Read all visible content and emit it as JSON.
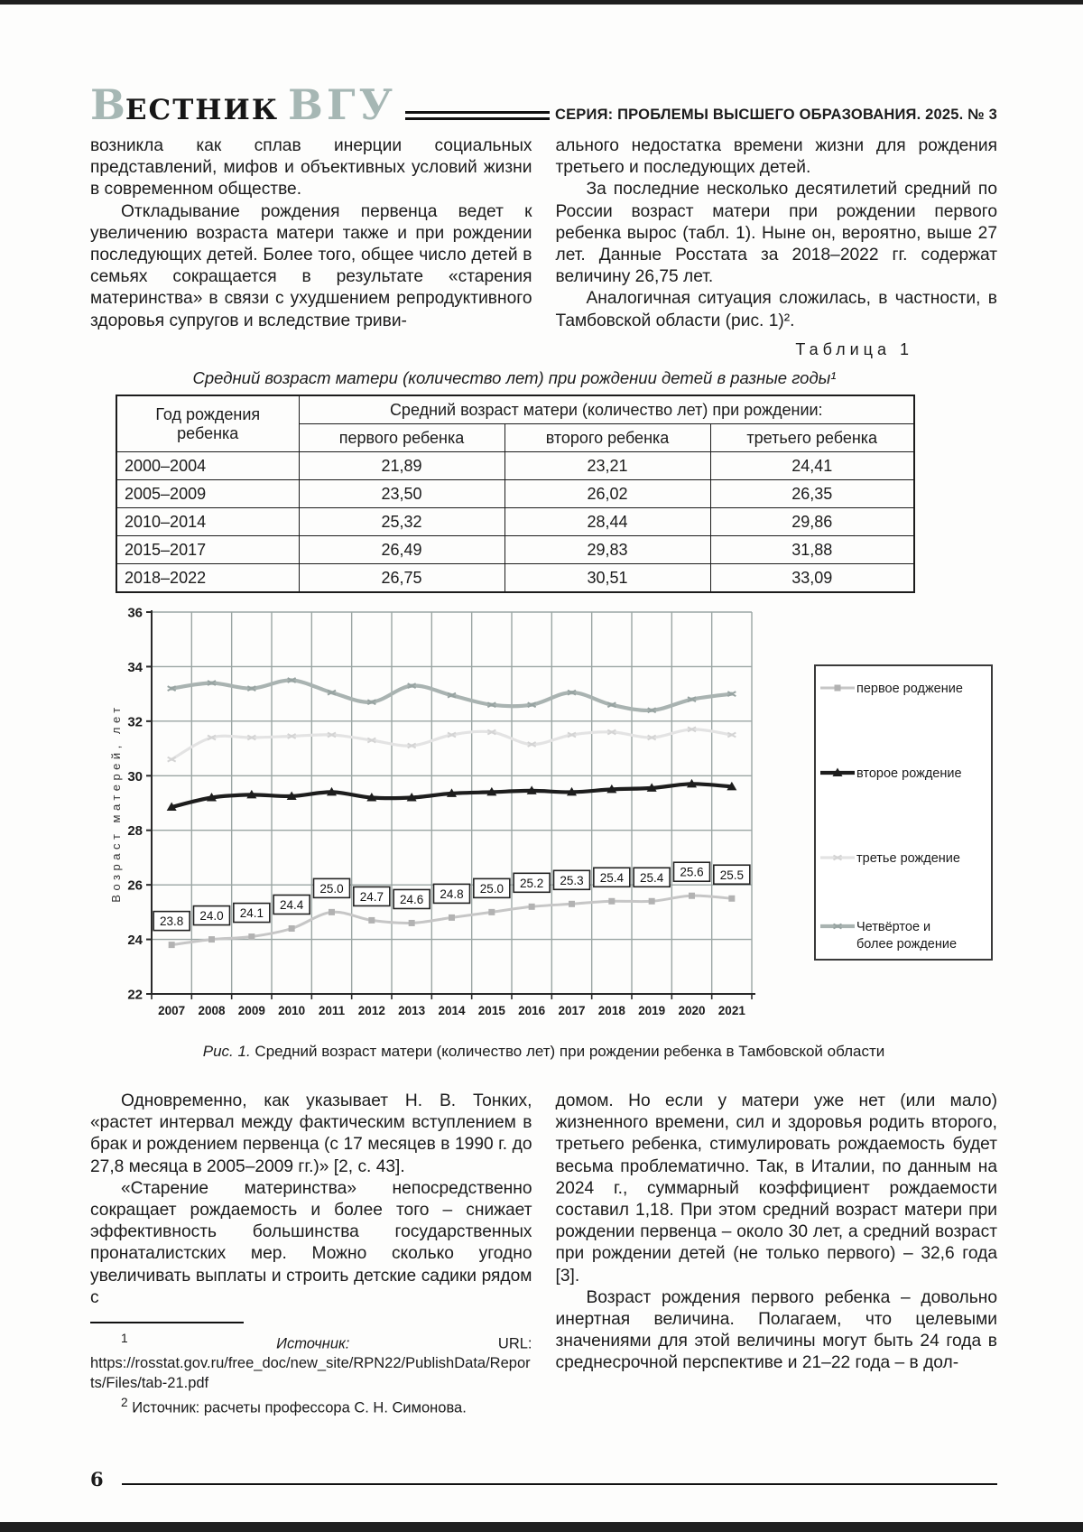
{
  "page": {
    "number": "6"
  },
  "header": {
    "logo": {
      "initial": "В",
      "rest": "ЕСТНИК",
      "suffix": "ВГУ"
    },
    "series": "СЕРИЯ: ПРОБЛЕМЫ ВЫСШЕГО ОБРАЗОВАНИЯ. 2025. № 3"
  },
  "intro": {
    "col1": [
      {
        "indent": false,
        "text": "возникла как сплав инерции социальных представлений, мифов и объективных условий жизни в современном обществе."
      },
      {
        "indent": true,
        "text": "Откладывание рождения первенца ведет к увеличению возраста матери также и при рождении последующих детей. Более того, общее число детей в семьях сокращается в результате «старения материнства» в связи с ухудшением репродуктивного здоровья супругов и вследствие триви-"
      }
    ],
    "col2": [
      {
        "indent": false,
        "text": "ального недостатка времени жизни для рождения третьего и последующих детей."
      },
      {
        "indent": true,
        "text": "За последние несколько десятилетий средний по России возраст матери при рождении первого ребенка вырос (табл. 1). Ныне он, вероятно, выше 27 лет. Данные Росстата за 2018–2022 гг. содержат величину 26,75 лет."
      },
      {
        "indent": true,
        "text": "Аналогичная ситуация сложилась, в частности, в Тамбовской области (рис. 1)²."
      }
    ]
  },
  "table1": {
    "label": "Таблица 1",
    "caption": "Средний возраст матери (количество лет) при рождении детей в разные годы¹",
    "corner_header": "Год рождения ребенка",
    "group_header": "Средний возраст матери (количество лет) при рождении:",
    "sub_headers": [
      "первого ребенка",
      "второго ребенка",
      "третьего ребенка"
    ],
    "rows": [
      [
        "2000–2004",
        "21,89",
        "23,21",
        "24,41"
      ],
      [
        "2005–2009",
        "23,50",
        "26,02",
        "26,35"
      ],
      [
        "2010–2014",
        "25,32",
        "28,44",
        "29,86"
      ],
      [
        "2015–2017",
        "26,49",
        "29,83",
        "31,88"
      ],
      [
        "2018–2022",
        "26,75",
        "30,51",
        "33,09"
      ]
    ]
  },
  "chart_data": {
    "type": "line",
    "x": [
      2007,
      2008,
      2009,
      2010,
      2011,
      2012,
      2013,
      2014,
      2015,
      2016,
      2017,
      2018,
      2019,
      2020,
      2021
    ],
    "ylabel": "Возраст матерей, лет",
    "ylim": [
      22,
      36
    ],
    "ytick_step": 2,
    "grid": true,
    "legend_position": "right",
    "grid_color": "#9aa5a3",
    "series": [
      {
        "name": "первое роджение",
        "legend_lines": [
          "первое роджение"
        ],
        "color": "#c6c6c6",
        "marker_color": "#b2b2b2",
        "marker": "square",
        "width": 3,
        "data_labels": true,
        "values": [
          23.8,
          24.0,
          24.1,
          24.4,
          25.0,
          24.7,
          24.6,
          24.8,
          25.0,
          25.2,
          25.3,
          25.4,
          25.4,
          25.6,
          25.5
        ]
      },
      {
        "name": "второе рождение",
        "legend_lines": [
          "второе рождение"
        ],
        "color": "#1d1d1d",
        "marker_color": "#1d1d1d",
        "marker": "triangle",
        "width": 4.2,
        "data_labels": false,
        "values": [
          28.85,
          29.2,
          29.3,
          29.25,
          29.4,
          29.2,
          29.2,
          29.35,
          29.4,
          29.45,
          29.4,
          29.5,
          29.55,
          29.7,
          29.6
        ]
      },
      {
        "name": "третье рождение",
        "legend_lines": [
          "третье рождение"
        ],
        "color": "#e3e3e3",
        "marker_color": "#d4d4d4",
        "marker": "cross",
        "width": 3.2,
        "data_labels": false,
        "values": [
          30.6,
          31.4,
          31.4,
          31.45,
          31.5,
          31.3,
          31.1,
          31.5,
          31.6,
          31.15,
          31.5,
          31.6,
          31.4,
          31.7,
          31.5
        ]
      },
      {
        "name": "Четвёртое и более рождение",
        "legend_lines": [
          "Четвёртое и",
          "более рождение"
        ],
        "color": "#a9b3b1",
        "marker_color": "#97a3a1",
        "marker": "cross",
        "width": 4.2,
        "data_labels": false,
        "values": [
          33.2,
          33.4,
          33.2,
          33.5,
          33.05,
          32.7,
          33.3,
          32.95,
          32.6,
          32.6,
          33.05,
          32.6,
          32.4,
          32.8,
          33.0
        ]
      }
    ]
  },
  "figure1": {
    "label": "Рис. 1.",
    "caption": " Средний возраст матери (количество лет) при рождении ребенка в Тамбовской области"
  },
  "body2": {
    "col1": [
      {
        "indent": true,
        "text": "Одновременно, как указывает Н. В. Тонких, «растет интервал между фактическим вступлением в брак и рождением первенца (с 17 месяцев в 1990 г. до 27,8 месяца в 2005–2009 гг.)» [2, с. 43]."
      },
      {
        "indent": true,
        "text": "«Старение материнства» непосредственно сокращает рождаемость и более того – снижает эффективность большинства государственных пронаталистских мер. Можно сколько угодно увеличивать выплаты и строить детские садики рядом с"
      }
    ],
    "col2": [
      {
        "indent": false,
        "text": "домом. Но если у матери уже нет (или мало) жизненного времени, сил и здоровья родить второго, третьего ребенка, стимулировать рождаемость будет весьма проблематично. Так, в Италии, по данным на 2024 г., суммарный коэффициент рождаемости составил 1,18. При этом средний возраст матери при рождении первенца – около 30 лет, а средний возраст при рождении детей (не только первого) – 32,6 года [3]."
      },
      {
        "indent": true,
        "text": "Возраст рождения первого ребенка – довольно инертная величина. Полагаем, что целевыми значениями для этой величины могут быть 24 года в среднесрочной перспективе и 21–22 года – в дол-"
      }
    ]
  },
  "footnotes": [
    {
      "mark": "1",
      "label": "Источник:",
      "label_italic": true,
      "text": "URL: https://rosstat.gov.ru/free_doc/new_site/RPN22/PublishData/Reports/Files/tab-21.pdf"
    },
    {
      "mark": "2",
      "label": "Источник:",
      "label_italic": false,
      "text": "расчеты профессора С. Н. Симонова."
    }
  ]
}
